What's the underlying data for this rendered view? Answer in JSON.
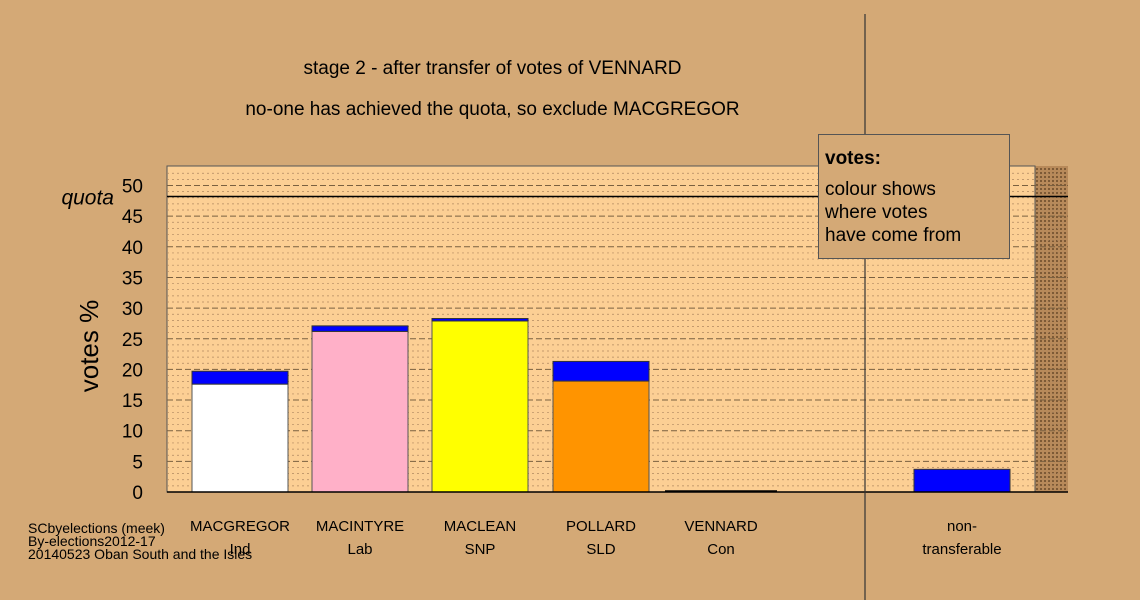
{
  "chart_data": {
    "type": "bar",
    "title": "stage 2 - after transfer of votes of VENNARD",
    "subtitle": "no-one has achieved the quota, so exclude MACGREGOR",
    "ylabel": "votes %",
    "ylim": [
      0,
      53
    ],
    "yticks": [
      0,
      5,
      10,
      15,
      20,
      25,
      30,
      35,
      40,
      45,
      50
    ],
    "quota": {
      "label": "quota",
      "value": 48.2
    },
    "categories": [
      {
        "name": "MACGREGOR",
        "party": "Ind",
        "base": 17.6,
        "transfer": 2.1,
        "color": "#ffffff"
      },
      {
        "name": "MACINTYRE",
        "party": "Lab",
        "base": 26.2,
        "transfer": 0.9,
        "color": "#ffb0c8"
      },
      {
        "name": "MACLEAN",
        "party": "SNP",
        "base": 27.9,
        "transfer": 0.4,
        "color": "#ffff00"
      },
      {
        "name": "POLLARD",
        "party": "SLD",
        "base": 18.1,
        "transfer": 3.2,
        "color": "#ff9400"
      },
      {
        "name": "VENNARD",
        "party": "Con",
        "base": 0,
        "transfer": 0,
        "color": "#000000"
      }
    ],
    "non_transferable": {
      "label1": "non-",
      "label2": "transferable",
      "value": 3.7
    },
    "transfer_color": "#0000ff",
    "grid": true
  },
  "legend": {
    "title": "votes:",
    "lines": [
      "colour shows",
      "where votes",
      "have come from"
    ]
  },
  "credits": [
    "SCbyelections (meek)",
    "By-elections2012-17",
    "20140523 Oban South and the Isles"
  ]
}
